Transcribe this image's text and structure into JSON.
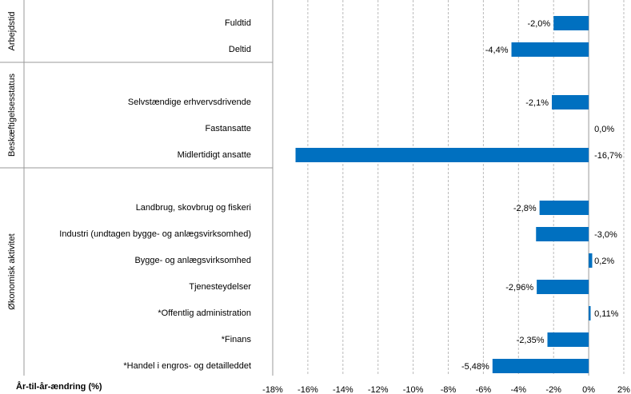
{
  "chart_data": {
    "type": "bar",
    "orientation": "horizontal",
    "color": "#0070c0",
    "grid": true,
    "xlabel": "År-til-år-ændring (%)",
    "xlim": [
      -18,
      2
    ],
    "xticks": [
      {
        "value": -18,
        "label": "-18%"
      },
      {
        "value": -16,
        "label": "-16%"
      },
      {
        "value": -14,
        "label": "-14%"
      },
      {
        "value": -12,
        "label": "-12%"
      },
      {
        "value": -10,
        "label": "-10%"
      },
      {
        "value": -8,
        "label": "-8%"
      },
      {
        "value": -6,
        "label": "-6%"
      },
      {
        "value": -4,
        "label": "-4%"
      },
      {
        "value": -2,
        "label": "-2%"
      },
      {
        "value": 0,
        "label": "0%"
      },
      {
        "value": 2,
        "label": "2%"
      }
    ],
    "groups": [
      {
        "name": "Arbejdstid",
        "categories": [
          "Fuldtid",
          "Deltid"
        ],
        "values": [
          -2.0,
          -4.4
        ],
        "value_labels": [
          "-2,0%",
          "-4,4%"
        ]
      },
      {
        "name": "Beskæftigelsesstatus",
        "categories": [
          "Selvstændige erhvervsdrivende",
          "Fastansatte",
          "Midlertidigt ansatte"
        ],
        "values": [
          -2.1,
          0.0,
          -16.7
        ],
        "value_labels": [
          "-2,1%",
          "0,0%",
          "-16,7%"
        ]
      },
      {
        "name": "Økonomisk aktivitet",
        "categories": [
          "Landbrug, skovbrug og fiskeri",
          "Industri (undtagen bygge- og anlægsvirksomhed)",
          "Bygge- og anlægsvirksomhed",
          "Tjenesteydelser",
          "*Offentlig administration",
          "*Finans",
          "*Handel i engros- og detailleddet"
        ],
        "values": [
          -2.8,
          -3.0,
          0.2,
          -2.96,
          0.11,
          -2.35,
          -5.48
        ],
        "value_labels": [
          "-2,8%",
          "-3,0%",
          "0,2%",
          "-2,96%",
          "0,11%",
          "-2,35%",
          "-5,48%"
        ]
      }
    ]
  }
}
